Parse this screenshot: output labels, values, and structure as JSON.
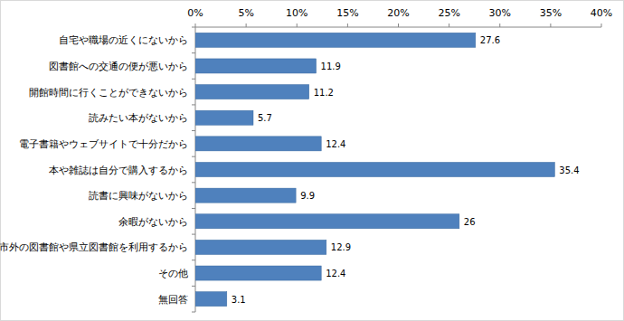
{
  "chart_data": {
    "type": "bar",
    "orientation": "horizontal",
    "categories": [
      "自宅や職場の近くにないから",
      "図書館への交通の便が悪いから",
      "開館時間に行くことができないから",
      "読みたい本がないから",
      "電子書籍やウェブサイトで十分だから",
      "本や雑誌は自分で購入するから",
      "読書に興味がないから",
      "余暇がないから",
      "市外の図書館や県立図書館を利用するから",
      "その他",
      "無回答"
    ],
    "values": [
      27.6,
      11.9,
      11.2,
      5.7,
      12.4,
      35.4,
      9.9,
      26.0,
      12.9,
      12.4,
      3.1
    ],
    "color": "#4f81bd",
    "xlim": [
      0,
      40
    ],
    "xticks": [
      {
        "value": 0,
        "label": "0%"
      },
      {
        "value": 5,
        "label": "5%"
      },
      {
        "value": 10,
        "label": "10%"
      },
      {
        "value": 15,
        "label": "15%"
      },
      {
        "value": 20,
        "label": "20%"
      },
      {
        "value": 25,
        "label": "25%"
      },
      {
        "value": 30,
        "label": "30%"
      },
      {
        "value": 35,
        "label": "35%"
      },
      {
        "value": 40,
        "label": "40%"
      }
    ],
    "grid": false,
    "data_labels": true
  }
}
